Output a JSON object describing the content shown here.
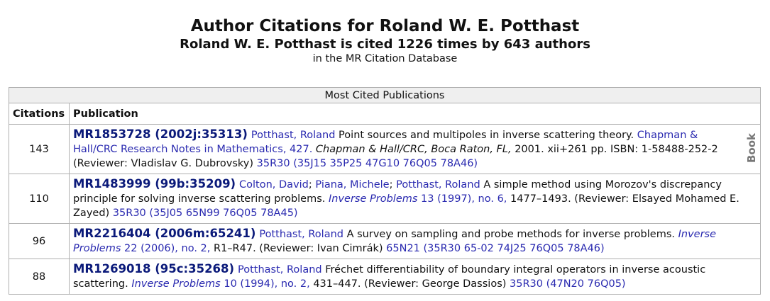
{
  "header": {
    "title": "Author Citations for Roland W. E. Potthast",
    "subtitle": "Roland W. E. Potthast is cited 1226 times by 643 authors",
    "note": "in the MR Citation Database"
  },
  "table": {
    "caption": "Most Cited Publications",
    "columns": [
      "Citations",
      "Publication"
    ],
    "rows": [
      {
        "citations": 143,
        "label": "Book",
        "publication": [
          {
            "text": "MR1853728 (2002j:35313)",
            "style": "mr"
          },
          {
            "text": "Potthast, Roland",
            "style": "link"
          },
          {
            "text": " Point sources and multipoles in inverse scattering theory. ",
            "style": "plain"
          },
          {
            "text": "Chapman & Hall/CRC Research Notes in Mathematics, 427.",
            "style": "link"
          },
          {
            "text": " Chapman & Hall/CRC, Boca Raton, FL,",
            "style": "italic"
          },
          {
            "text": " 2001. xii+261 pp. ISBN: 1-58488-252-2 (Reviewer: Vladislav G. Dubrovsky) ",
            "style": "plain"
          },
          {
            "text": "35R30 (35J15 35P25 47G10 76Q05 78A46)",
            "style": "link"
          }
        ]
      },
      {
        "citations": 110,
        "publication": [
          {
            "text": "MR1483999 (99b:35209)",
            "style": "mr"
          },
          {
            "text": "Colton, David",
            "style": "link"
          },
          {
            "text": "; ",
            "style": "plain"
          },
          {
            "text": "Piana, Michele",
            "style": "link"
          },
          {
            "text": "; ",
            "style": "plain"
          },
          {
            "text": "Potthast, Roland",
            "style": "link"
          },
          {
            "text": " A simple method using Morozov's discrepancy principle for solving inverse scattering problems. ",
            "style": "plain"
          },
          {
            "text": "Inverse Problems",
            "style": "link-italic"
          },
          {
            "text": " 13 (1997), no. 6,",
            "style": "link"
          },
          {
            "text": " 1477–1493. (Reviewer: Elsayed Mohamed E. Zayed) ",
            "style": "plain"
          },
          {
            "text": "35R30 (35J05 65N99 76Q05 78A45)",
            "style": "link"
          }
        ]
      },
      {
        "citations": 96,
        "publication": [
          {
            "text": "MR2216404 (2006m:65241)",
            "style": "mr"
          },
          {
            "text": "Potthast, Roland",
            "style": "link"
          },
          {
            "text": " A survey on sampling and probe methods for inverse problems. ",
            "style": "plain"
          },
          {
            "text": "Inverse Problems",
            "style": "link-italic"
          },
          {
            "text": " 22 (2006), no. 2,",
            "style": "link"
          },
          {
            "text": " R1–R47. (Reviewer: Ivan Cimrák) ",
            "style": "plain"
          },
          {
            "text": "65N21 (35R30 65-02 74J25 76Q05 78A46)",
            "style": "link"
          }
        ]
      },
      {
        "citations": 88,
        "publication": [
          {
            "text": "MR1269018 (95c:35268)",
            "style": "mr"
          },
          {
            "text": "Potthast, Roland",
            "style": "link"
          },
          {
            "text": " Fréchet differentiability of boundary integral operators in inverse acoustic scattering. ",
            "style": "plain"
          },
          {
            "text": "Inverse Problems",
            "style": "link-italic"
          },
          {
            "text": " 10 (1994), no. 2,",
            "style": "link"
          },
          {
            "text": " 431–447. (Reviewer: George Dassios) ",
            "style": "plain"
          },
          {
            "text": "35R30 (47N20 76Q05)",
            "style": "link"
          }
        ]
      }
    ]
  }
}
